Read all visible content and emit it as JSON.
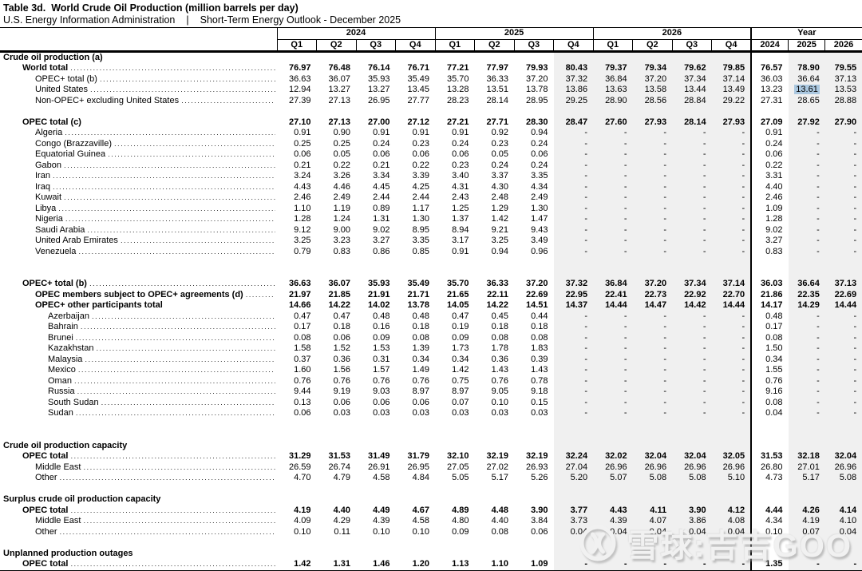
{
  "header": {
    "title": "Table 3d.  World Crude Oil Production (million barrels per day)",
    "agency": "U.S. Energy Information Administration",
    "report": "Short-Term Energy Outlook - December 2025"
  },
  "table": {
    "column_groups": [
      {
        "label": "2024",
        "columns": [
          "Q1",
          "Q2",
          "Q3",
          "Q4"
        ]
      },
      {
        "label": "2025",
        "columns": [
          "Q1",
          "Q2",
          "Q3",
          "Q4"
        ]
      },
      {
        "label": "2026",
        "columns": [
          "Q1",
          "Q2",
          "Q3",
          "Q4"
        ]
      },
      {
        "label": "Year",
        "columns": [
          "2024",
          "2025",
          "2026"
        ]
      }
    ],
    "shaded_value_columns": [
      7,
      8,
      9,
      10,
      11,
      13,
      14
    ],
    "shade_color": "#f0f0f0",
    "highlight_color": "#abc8e0",
    "rows": [
      {
        "type": "section",
        "label": "Crude oil production (a)"
      },
      {
        "type": "data",
        "label": "World total",
        "indent": 1,
        "bold": true,
        "dots": true,
        "values": [
          "76.97",
          "76.48",
          "76.14",
          "76.71",
          "77.21",
          "77.97",
          "79.93",
          "80.43",
          "79.37",
          "79.34",
          "79.62",
          "79.85",
          "76.57",
          "78.90",
          "79.55"
        ]
      },
      {
        "type": "data",
        "label": "OPEC+ total (b)",
        "indent": 2,
        "dots": true,
        "values": [
          "36.63",
          "36.07",
          "35.93",
          "35.49",
          "35.70",
          "36.33",
          "37.20",
          "37.32",
          "36.84",
          "37.20",
          "37.34",
          "37.14",
          "36.03",
          "36.64",
          "37.13"
        ]
      },
      {
        "type": "data",
        "label": "United States",
        "indent": 2,
        "dots": true,
        "highlight_col": 13,
        "values": [
          "12.94",
          "13.27",
          "13.27",
          "13.45",
          "13.28",
          "13.51",
          "13.78",
          "13.86",
          "13.63",
          "13.58",
          "13.44",
          "13.49",
          "13.23",
          "13.61",
          "13.53"
        ]
      },
      {
        "type": "data",
        "label": "Non-OPEC+ excluding United States",
        "indent": 2,
        "dots": true,
        "values": [
          "27.39",
          "27.13",
          "26.95",
          "27.77",
          "28.23",
          "28.14",
          "28.95",
          "29.25",
          "28.90",
          "28.56",
          "28.84",
          "29.22",
          "27.31",
          "28.65",
          "28.88"
        ]
      },
      {
        "type": "spacer"
      },
      {
        "type": "data",
        "label": "OPEC total (c)",
        "indent": 1,
        "bold": true,
        "dots": false,
        "values": [
          "27.10",
          "27.13",
          "27.00",
          "27.12",
          "27.21",
          "27.71",
          "28.30",
          "28.47",
          "27.60",
          "27.93",
          "28.14",
          "27.93",
          "27.09",
          "27.92",
          "27.90"
        ]
      },
      {
        "type": "data",
        "label": "Algeria",
        "indent": 2,
        "dots": true,
        "values": [
          "0.91",
          "0.90",
          "0.91",
          "0.91",
          "0.91",
          "0.92",
          "0.94",
          "-",
          "-",
          "-",
          "-",
          "-",
          "0.91",
          "-",
          "-"
        ]
      },
      {
        "type": "data",
        "label": "Congo (Brazzaville)",
        "indent": 2,
        "dots": true,
        "values": [
          "0.25",
          "0.25",
          "0.24",
          "0.23",
          "0.24",
          "0.23",
          "0.24",
          "-",
          "-",
          "-",
          "-",
          "-",
          "0.24",
          "-",
          "-"
        ]
      },
      {
        "type": "data",
        "label": "Equatorial Guinea",
        "indent": 2,
        "dots": true,
        "values": [
          "0.06",
          "0.05",
          "0.06",
          "0.06",
          "0.06",
          "0.05",
          "0.06",
          "-",
          "-",
          "-",
          "-",
          "-",
          "0.06",
          "-",
          "-"
        ]
      },
      {
        "type": "data",
        "label": "Gabon",
        "indent": 2,
        "dots": true,
        "values": [
          "0.21",
          "0.22",
          "0.21",
          "0.22",
          "0.23",
          "0.24",
          "0.24",
          "-",
          "-",
          "-",
          "-",
          "-",
          "0.22",
          "-",
          "-"
        ]
      },
      {
        "type": "data",
        "label": "Iran",
        "indent": 2,
        "dots": true,
        "values": [
          "3.24",
          "3.26",
          "3.34",
          "3.39",
          "3.40",
          "3.37",
          "3.35",
          "-",
          "-",
          "-",
          "-",
          "-",
          "3.31",
          "-",
          "-"
        ]
      },
      {
        "type": "data",
        "label": "Iraq",
        "indent": 2,
        "dots": true,
        "values": [
          "4.43",
          "4.46",
          "4.45",
          "4.25",
          "4.31",
          "4.30",
          "4.34",
          "-",
          "-",
          "-",
          "-",
          "-",
          "4.40",
          "-",
          "-"
        ]
      },
      {
        "type": "data",
        "label": "Kuwait",
        "indent": 2,
        "dots": true,
        "values": [
          "2.46",
          "2.49",
          "2.44",
          "2.44",
          "2.43",
          "2.48",
          "2.49",
          "-",
          "-",
          "-",
          "-",
          "-",
          "2.46",
          "-",
          "-"
        ]
      },
      {
        "type": "data",
        "label": "Libya",
        "indent": 2,
        "dots": true,
        "values": [
          "1.10",
          "1.19",
          "0.89",
          "1.17",
          "1.25",
          "1.29",
          "1.30",
          "-",
          "-",
          "-",
          "-",
          "-",
          "1.09",
          "-",
          "-"
        ]
      },
      {
        "type": "data",
        "label": "Nigeria",
        "indent": 2,
        "dots": true,
        "values": [
          "1.28",
          "1.24",
          "1.31",
          "1.30",
          "1.37",
          "1.42",
          "1.47",
          "-",
          "-",
          "-",
          "-",
          "-",
          "1.28",
          "-",
          "-"
        ]
      },
      {
        "type": "data",
        "label": "Saudi Arabia",
        "indent": 2,
        "dots": true,
        "values": [
          "9.12",
          "9.00",
          "9.02",
          "8.95",
          "8.94",
          "9.21",
          "9.43",
          "-",
          "-",
          "-",
          "-",
          "-",
          "9.02",
          "-",
          "-"
        ]
      },
      {
        "type": "data",
        "label": "United Arab Emirates",
        "indent": 2,
        "dots": true,
        "values": [
          "3.25",
          "3.23",
          "3.27",
          "3.35",
          "3.17",
          "3.25",
          "3.49",
          "-",
          "-",
          "-",
          "-",
          "-",
          "3.27",
          "-",
          "-"
        ]
      },
      {
        "type": "data",
        "label": "Venezuela",
        "indent": 2,
        "dots": true,
        "values": [
          "0.79",
          "0.83",
          "0.86",
          "0.85",
          "0.91",
          "0.94",
          "0.96",
          "-",
          "-",
          "-",
          "-",
          "-",
          "0.83",
          "-",
          "-"
        ]
      },
      {
        "type": "spacer"
      },
      {
        "type": "spacer"
      },
      {
        "type": "data",
        "label": "OPEC+ total (b)",
        "indent": 1,
        "bold": true,
        "dots": true,
        "values": [
          "36.63",
          "36.07",
          "35.93",
          "35.49",
          "35.70",
          "36.33",
          "37.20",
          "37.32",
          "36.84",
          "37.20",
          "37.34",
          "37.14",
          "36.03",
          "36.64",
          "37.13"
        ]
      },
      {
        "type": "data",
        "label": "OPEC members subject to OPEC+ agreements (d)",
        "indent": 2,
        "bold": true,
        "dots": true,
        "values": [
          "21.97",
          "21.85",
          "21.91",
          "21.71",
          "21.65",
          "22.11",
          "22.69",
          "22.95",
          "22.41",
          "22.73",
          "22.92",
          "22.70",
          "21.86",
          "22.35",
          "22.69"
        ]
      },
      {
        "type": "data",
        "label": "OPEC+ other participants total",
        "indent": 2,
        "bold": true,
        "dots": false,
        "values": [
          "14.66",
          "14.22",
          "14.02",
          "13.78",
          "14.05",
          "14.22",
          "14.51",
          "14.37",
          "14.44",
          "14.47",
          "14.42",
          "14.44",
          "14.17",
          "14.29",
          "14.44"
        ]
      },
      {
        "type": "data",
        "label": "Azerbaijan",
        "indent": 3,
        "dots": true,
        "values": [
          "0.47",
          "0.47",
          "0.48",
          "0.48",
          "0.47",
          "0.45",
          "0.44",
          "-",
          "-",
          "-",
          "-",
          "-",
          "0.48",
          "-",
          "-"
        ]
      },
      {
        "type": "data",
        "label": "Bahrain",
        "indent": 3,
        "dots": true,
        "values": [
          "0.17",
          "0.18",
          "0.16",
          "0.18",
          "0.19",
          "0.18",
          "0.18",
          "-",
          "-",
          "-",
          "-",
          "-",
          "0.17",
          "-",
          "-"
        ]
      },
      {
        "type": "data",
        "label": "Brunei",
        "indent": 3,
        "dots": true,
        "values": [
          "0.08",
          "0.06",
          "0.09",
          "0.08",
          "0.09",
          "0.08",
          "0.08",
          "-",
          "-",
          "-",
          "-",
          "-",
          "0.08",
          "-",
          "-"
        ]
      },
      {
        "type": "data",
        "label": "Kazakhstan",
        "indent": 3,
        "dots": true,
        "values": [
          "1.58",
          "1.52",
          "1.53",
          "1.39",
          "1.73",
          "1.78",
          "1.83",
          "-",
          "-",
          "-",
          "-",
          "-",
          "1.50",
          "-",
          "-"
        ]
      },
      {
        "type": "data",
        "label": "Malaysia",
        "indent": 3,
        "dots": true,
        "values": [
          "0.37",
          "0.36",
          "0.31",
          "0.34",
          "0.34",
          "0.36",
          "0.39",
          "-",
          "-",
          "-",
          "-",
          "-",
          "0.34",
          "-",
          "-"
        ]
      },
      {
        "type": "data",
        "label": "Mexico",
        "indent": 3,
        "dots": true,
        "values": [
          "1.60",
          "1.56",
          "1.57",
          "1.49",
          "1.42",
          "1.43",
          "1.43",
          "-",
          "-",
          "-",
          "-",
          "-",
          "1.55",
          "-",
          "-"
        ]
      },
      {
        "type": "data",
        "label": "Oman",
        "indent": 3,
        "dots": true,
        "values": [
          "0.76",
          "0.76",
          "0.76",
          "0.76",
          "0.75",
          "0.76",
          "0.78",
          "-",
          "-",
          "-",
          "-",
          "-",
          "0.76",
          "-",
          "-"
        ]
      },
      {
        "type": "data",
        "label": "Russia",
        "indent": 3,
        "dots": true,
        "values": [
          "9.44",
          "9.19",
          "9.03",
          "8.97",
          "8.97",
          "9.05",
          "9.18",
          "-",
          "-",
          "-",
          "-",
          "-",
          "9.16",
          "-",
          "-"
        ]
      },
      {
        "type": "data",
        "label": "South Sudan",
        "indent": 3,
        "dots": true,
        "values": [
          "0.13",
          "0.06",
          "0.06",
          "0.06",
          "0.07",
          "0.10",
          "0.15",
          "-",
          "-",
          "-",
          "-",
          "-",
          "0.08",
          "-",
          "-"
        ]
      },
      {
        "type": "data",
        "label": "Sudan",
        "indent": 3,
        "dots": true,
        "values": [
          "0.06",
          "0.03",
          "0.03",
          "0.03",
          "0.03",
          "0.03",
          "0.03",
          "-",
          "-",
          "-",
          "-",
          "-",
          "0.04",
          "-",
          "-"
        ]
      },
      {
        "type": "spacer"
      },
      {
        "type": "spacer"
      },
      {
        "type": "section",
        "label": "Crude oil production capacity"
      },
      {
        "type": "data",
        "label": "OPEC total",
        "indent": 1,
        "bold": true,
        "dots": true,
        "values": [
          "31.29",
          "31.53",
          "31.49",
          "31.79",
          "32.10",
          "32.19",
          "32.19",
          "32.24",
          "32.02",
          "32.04",
          "32.04",
          "32.05",
          "31.53",
          "32.18",
          "32.04"
        ]
      },
      {
        "type": "data",
        "label": "Middle East",
        "indent": 2,
        "dots": true,
        "values": [
          "26.59",
          "26.74",
          "26.91",
          "26.95",
          "27.05",
          "27.02",
          "26.93",
          "27.04",
          "26.96",
          "26.96",
          "26.96",
          "26.96",
          "26.80",
          "27.01",
          "26.96"
        ]
      },
      {
        "type": "data",
        "label": "Other",
        "indent": 2,
        "dots": true,
        "values": [
          "4.70",
          "4.79",
          "4.58",
          "4.84",
          "5.05",
          "5.17",
          "5.26",
          "5.20",
          "5.07",
          "5.08",
          "5.08",
          "5.10",
          "4.73",
          "5.17",
          "5.08"
        ]
      },
      {
        "type": "spacer"
      },
      {
        "type": "section",
        "label": "Surplus crude oil production capacity"
      },
      {
        "type": "data",
        "label": "OPEC total",
        "indent": 1,
        "bold": true,
        "dots": true,
        "values": [
          "4.19",
          "4.40",
          "4.49",
          "4.67",
          "4.89",
          "4.48",
          "3.90",
          "3.77",
          "4.43",
          "4.11",
          "3.90",
          "4.12",
          "4.44",
          "4.26",
          "4.14"
        ]
      },
      {
        "type": "data",
        "label": "Middle East",
        "indent": 2,
        "dots": true,
        "values": [
          "4.09",
          "4.29",
          "4.39",
          "4.58",
          "4.80",
          "4.40",
          "3.84",
          "3.73",
          "4.39",
          "4.07",
          "3.86",
          "4.08",
          "4.34",
          "4.19",
          "4.10"
        ]
      },
      {
        "type": "data",
        "label": "Other",
        "indent": 2,
        "dots": true,
        "values": [
          "0.10",
          "0.11",
          "0.10",
          "0.10",
          "0.09",
          "0.08",
          "0.06",
          "0.04",
          "0.04",
          "0.04",
          "0.04",
          "0.04",
          "0.10",
          "0.07",
          "0.04"
        ]
      },
      {
        "type": "spacer"
      },
      {
        "type": "section",
        "label": "Unplanned production outages"
      },
      {
        "type": "data",
        "label": "OPEC total",
        "indent": 1,
        "bold": true,
        "dots": true,
        "values": [
          "1.42",
          "1.31",
          "1.46",
          "1.20",
          "1.13",
          "1.10",
          "1.09",
          "-",
          "-",
          "-",
          "-",
          "-",
          "1.35",
          "-",
          "-"
        ]
      }
    ]
  },
  "watermark": {
    "text": "雪球:吉吉GOO",
    "logo": "xueqiu-snowball-logo"
  }
}
